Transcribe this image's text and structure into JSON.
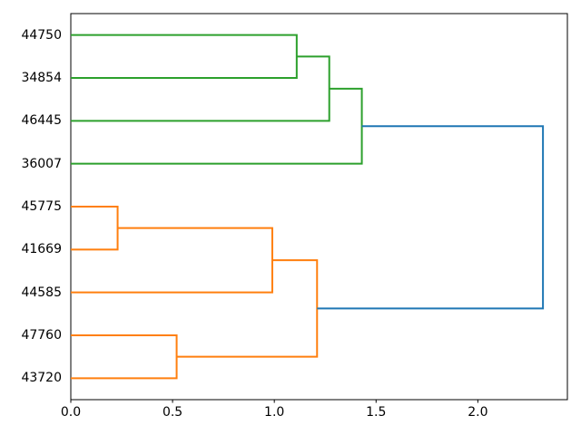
{
  "chart_data": {
    "type": "dendrogram",
    "orientation": "right",
    "title": "",
    "xlabel": "",
    "ylabel": "",
    "grid": false,
    "xlim": [
      0,
      2.44
    ],
    "ylim": [
      0,
      90
    ],
    "x_ticks": [
      {
        "value": 0.0,
        "label": "0.0"
      },
      {
        "value": 0.5,
        "label": "0.5"
      },
      {
        "value": 1.0,
        "label": "1.0"
      },
      {
        "value": 1.5,
        "label": "1.5"
      },
      {
        "value": 2.0,
        "label": "2.0"
      }
    ],
    "leaves": [
      {
        "label": "44750",
        "position": 85
      },
      {
        "label": "34854",
        "position": 75
      },
      {
        "label": "46445",
        "position": 65
      },
      {
        "label": "36007",
        "position": 55
      },
      {
        "label": "45775",
        "position": 45
      },
      {
        "label": "41669",
        "position": 35
      },
      {
        "label": "44585",
        "position": 25
      },
      {
        "label": "47760",
        "position": 15
      },
      {
        "label": "43720",
        "position": 5
      }
    ],
    "links": [
      {
        "a": "leaf:0",
        "b": "leaf:1",
        "height": 1.11,
        "color": "#2ca02c"
      },
      {
        "a": "link:0",
        "b": "leaf:2",
        "height": 1.27,
        "color": "#2ca02c"
      },
      {
        "a": "link:1",
        "b": "leaf:3",
        "height": 1.43,
        "color": "#2ca02c"
      },
      {
        "a": "leaf:4",
        "b": "leaf:5",
        "height": 0.23,
        "color": "#ff7f0e"
      },
      {
        "a": "link:3",
        "b": "leaf:6",
        "height": 0.99,
        "color": "#ff7f0e"
      },
      {
        "a": "leaf:7",
        "b": "leaf:8",
        "height": 0.52,
        "color": "#ff7f0e"
      },
      {
        "a": "link:4",
        "b": "link:5",
        "height": 1.21,
        "color": "#ff7f0e"
      },
      {
        "a": "link:2",
        "b": "link:6",
        "height": 2.32,
        "color": "#1f77b4"
      }
    ],
    "colors": {
      "above_threshold_link": "#1f77b4",
      "cluster_orange": "#ff7f0e",
      "cluster_green": "#2ca02c",
      "axes": "#000000",
      "background": "#ffffff"
    },
    "line_width": 2
  }
}
